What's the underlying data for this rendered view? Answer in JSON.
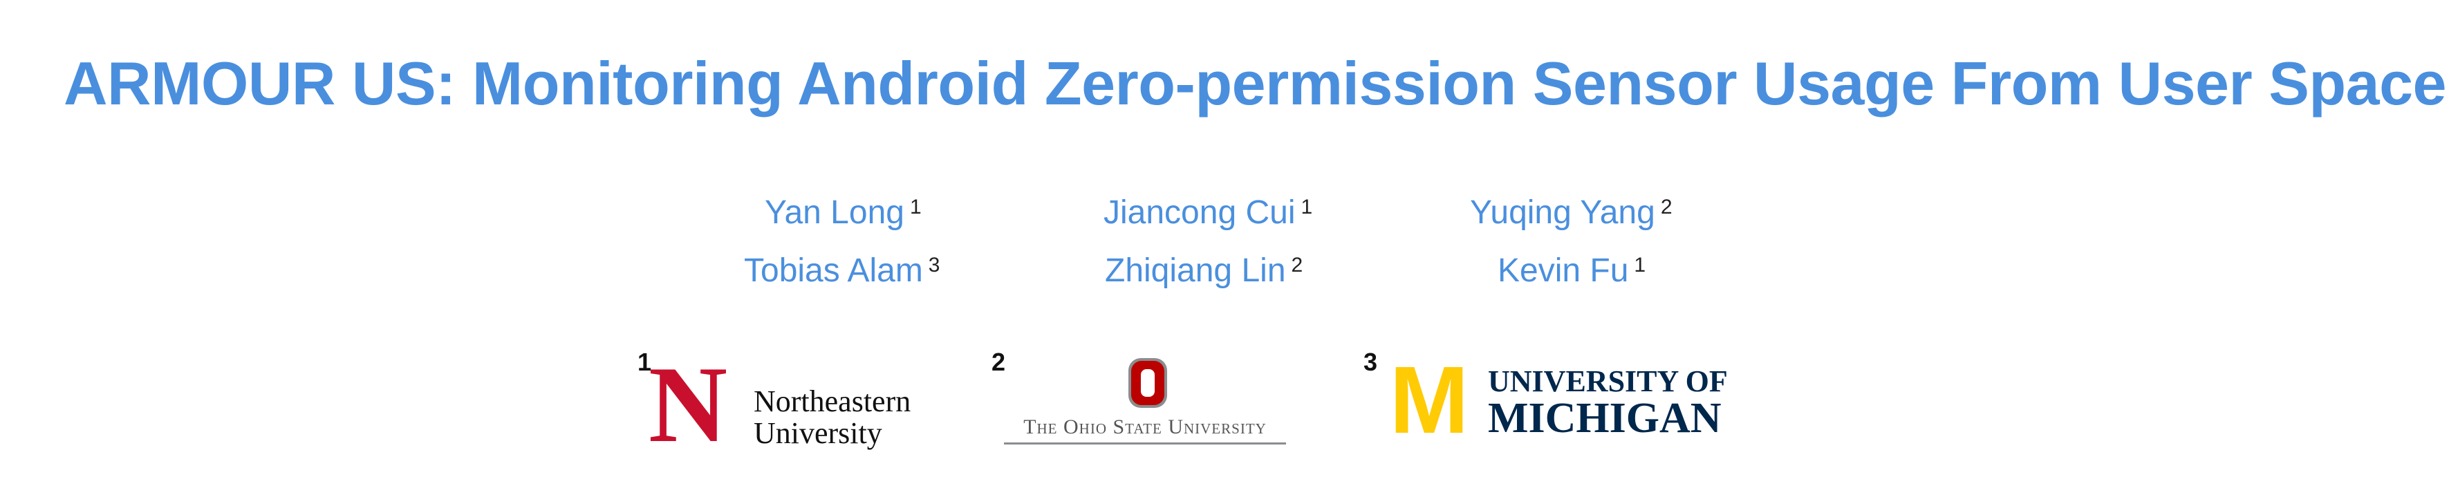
{
  "title": "ARMOUR US: Monitoring Android Zero-permission Sensor Usage From User Space",
  "authors": [
    {
      "name": "Yan Long",
      "aff": "1"
    },
    {
      "name": "Jiancong Cui",
      "aff": "1"
    },
    {
      "name": "Yuqing Yang",
      "aff": "2"
    },
    {
      "name": "Tobias Alam",
      "aff": "3"
    },
    {
      "name": "Zhiqiang Lin",
      "aff": "2"
    },
    {
      "name": "Kevin Fu",
      "aff": "1"
    }
  ],
  "affiliations": [
    {
      "num": "1",
      "logo_letter": "N",
      "line1": "Northeastern",
      "line2": "University"
    },
    {
      "num": "2",
      "logo_letter": "O",
      "line1": "The Ohio State University"
    },
    {
      "num": "3",
      "logo_letter": "M",
      "line1": "UNIVERSITY OF",
      "line2": "MICHIGAN"
    }
  ],
  "colors": {
    "title": "#4a8fde",
    "author_link": "#4a8fde",
    "northeastern_red": "#c8102e",
    "osu_scarlet": "#bb0000",
    "michigan_maize": "#ffcb05",
    "michigan_blue": "#00274c"
  }
}
